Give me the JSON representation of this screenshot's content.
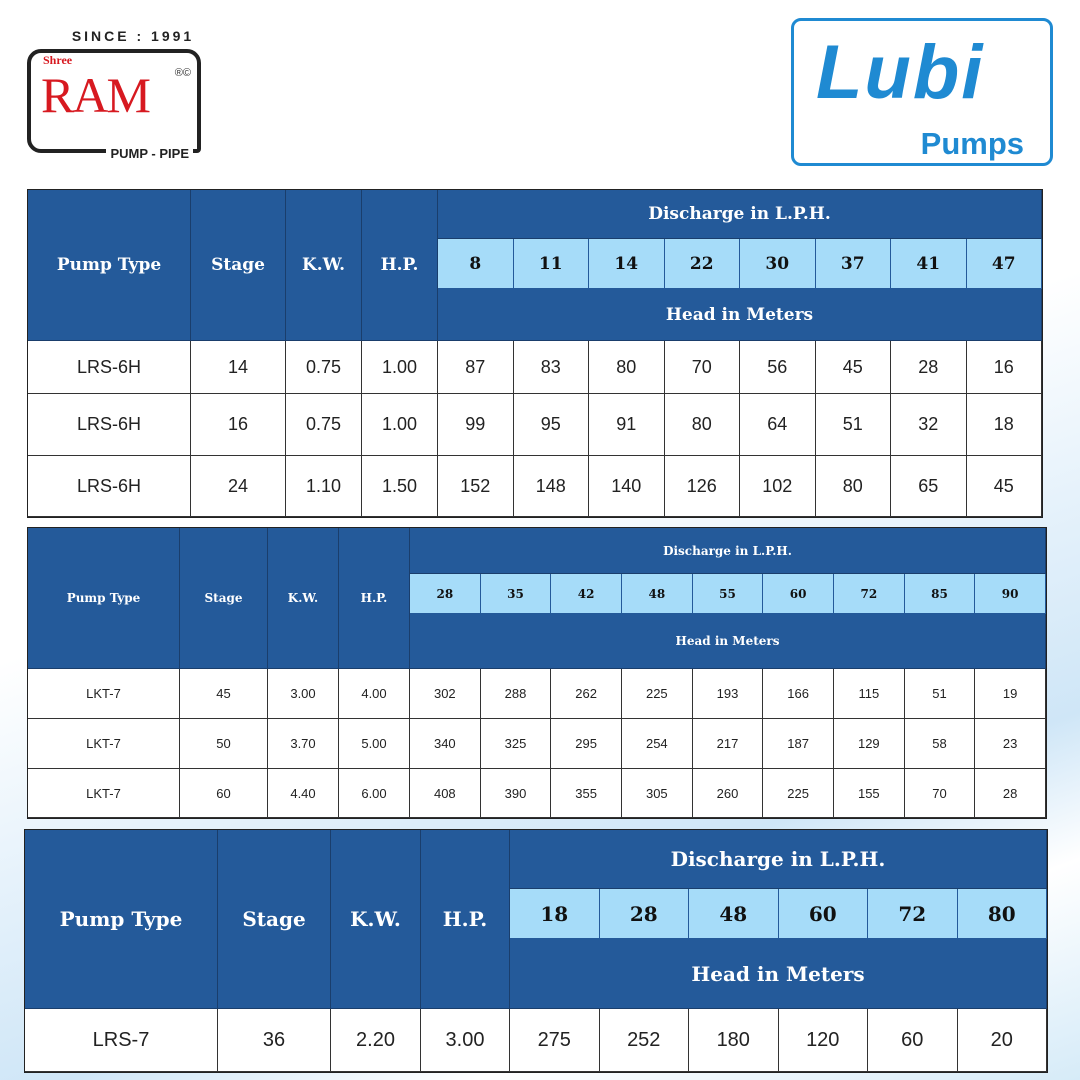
{
  "brand_left": {
    "since": "SINCE : 1991",
    "shree": "Shree",
    "name": "RAM",
    "mark": "®©",
    "tagline": "PUMP - PIPE",
    "color": "#d71920"
  },
  "brand_right": {
    "name": "Lubi",
    "tagline": "Pumps",
    "color": "#1f8ad2"
  },
  "colors": {
    "header": "#245a9a",
    "discharge_cells": "#a6dcf9"
  },
  "tables": [
    {
      "headers": {
        "pump_type": "Pump Type",
        "stage": "Stage",
        "kw": "K.W.",
        "hp": "H.P.",
        "discharge": "Discharge in L.P.H.",
        "head": "Head in Meters"
      },
      "discharge_values": [
        "8",
        "11",
        "14",
        "22",
        "30",
        "37",
        "41",
        "47"
      ],
      "rows": [
        {
          "pump_type": "LRS-6H",
          "stage": "14",
          "kw": "0.75",
          "hp": "1.00",
          "head": [
            "87",
            "83",
            "80",
            "70",
            "56",
            "45",
            "28",
            "16"
          ]
        },
        {
          "pump_type": "LRS-6H",
          "stage": "16",
          "kw": "0.75",
          "hp": "1.00",
          "head": [
            "99",
            "95",
            "91",
            "80",
            "64",
            "51",
            "32",
            "18"
          ]
        },
        {
          "pump_type": "LRS-6H",
          "stage": "24",
          "kw": "1.10",
          "hp": "1.50",
          "head": [
            "152",
            "148",
            "140",
            "126",
            "102",
            "80",
            "65",
            "45"
          ]
        }
      ]
    },
    {
      "headers": {
        "pump_type": "Pump Type",
        "stage": "Stage",
        "kw": "K.W.",
        "hp": "H.P.",
        "discharge": "Discharge in L.P.H.",
        "head": "Head in Meters"
      },
      "discharge_values": [
        "28",
        "35",
        "42",
        "48",
        "55",
        "60",
        "72",
        "85",
        "90"
      ],
      "rows": [
        {
          "pump_type": "LKT-7",
          "stage": "45",
          "kw": "3.00",
          "hp": "4.00",
          "head": [
            "302",
            "288",
            "262",
            "225",
            "193",
            "166",
            "115",
            "51",
            "19"
          ]
        },
        {
          "pump_type": "LKT-7",
          "stage": "50",
          "kw": "3.70",
          "hp": "5.00",
          "head": [
            "340",
            "325",
            "295",
            "254",
            "217",
            "187",
            "129",
            "58",
            "23"
          ]
        },
        {
          "pump_type": "LKT-7",
          "stage": "60",
          "kw": "4.40",
          "hp": "6.00",
          "head": [
            "408",
            "390",
            "355",
            "305",
            "260",
            "225",
            "155",
            "70",
            "28"
          ]
        }
      ]
    },
    {
      "headers": {
        "pump_type": "Pump Type",
        "stage": "Stage",
        "kw": "K.W.",
        "hp": "H.P.",
        "discharge": "Discharge in L.P.H.",
        "head": "Head in Meters"
      },
      "discharge_values": [
        "18",
        "28",
        "48",
        "60",
        "72",
        "80"
      ],
      "rows": [
        {
          "pump_type": "LRS-7",
          "stage": "36",
          "kw": "2.20",
          "hp": "3.00",
          "head": [
            "275",
            "252",
            "180",
            "120",
            "60",
            "20"
          ]
        }
      ]
    }
  ]
}
